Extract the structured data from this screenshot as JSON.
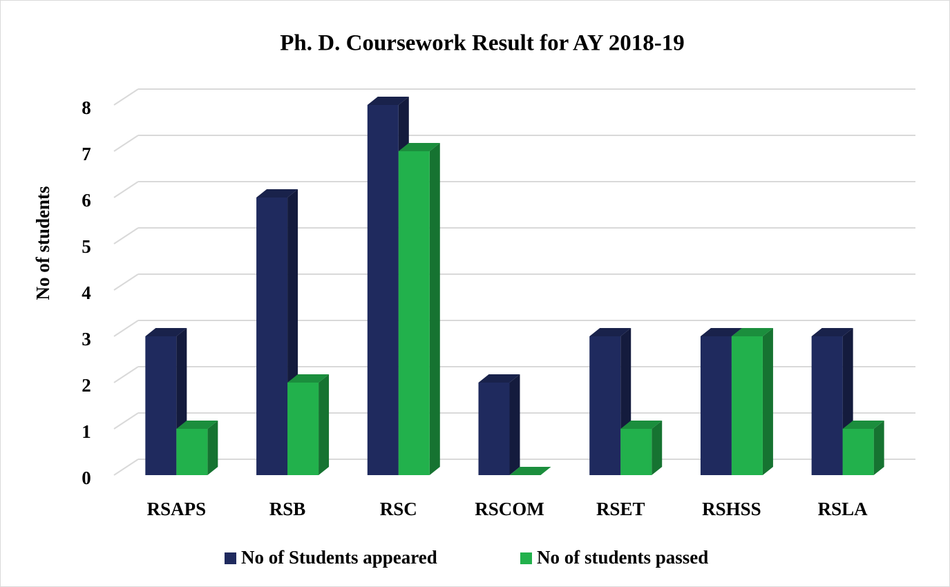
{
  "chart_data": {
    "type": "bar3d",
    "title": "Ph. D. Coursework Result for AY 2018-19",
    "y_label": "No of students",
    "categories": [
      "RSAPS",
      "RSB",
      "RSC",
      "RSCOM",
      "RSET",
      "RSHSS",
      "RSLA"
    ],
    "series": [
      {
        "name": "No of Students appeared",
        "color": "#1f2a5e",
        "values": [
          3,
          6,
          8,
          2,
          3,
          3,
          3
        ]
      },
      {
        "name": "No of students passed",
        "color": "#22b14c",
        "values": [
          1,
          2,
          7,
          0,
          1,
          3,
          1
        ]
      }
    ],
    "ylim": [
      0,
      8
    ],
    "yticks": [
      0,
      1,
      2,
      3,
      4,
      5,
      6,
      7,
      8
    ],
    "grid": true,
    "legend": "bottom"
  }
}
